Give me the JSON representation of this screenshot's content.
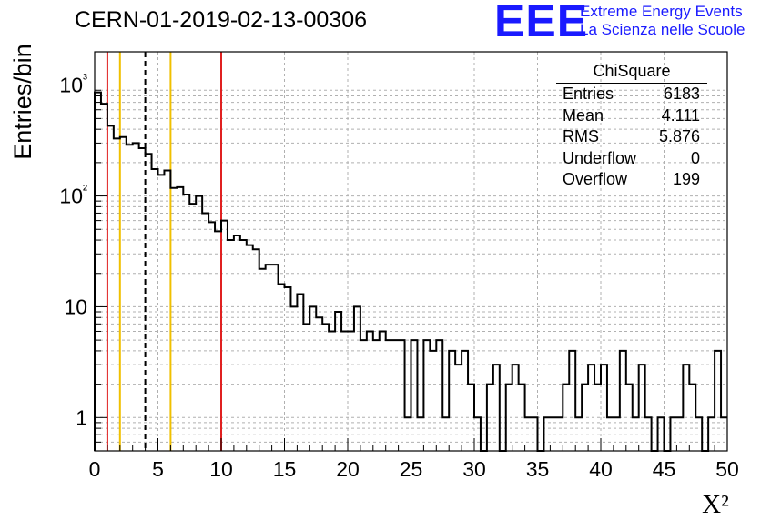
{
  "header": {
    "title": "CERN-01-2019-02-13-00306",
    "logo_letters": "EEE",
    "logo_line1": "Extreme Energy Events",
    "logo_line2": "La Scienza nelle Scuole"
  },
  "stats_box": {
    "title": "ChiSquare",
    "rows": [
      {
        "label": "Entries",
        "value": "6183"
      },
      {
        "label": "Mean",
        "value": "4.111"
      },
      {
        "label": "RMS",
        "value": "5.876"
      },
      {
        "label": "Underflow",
        "value": "0"
      },
      {
        "label": "Overflow",
        "value": "199"
      }
    ]
  },
  "chart_data": {
    "type": "histogram",
    "title": "CERN-01-2019-02-13-00306",
    "xlabel": "X²",
    "ylabel": "Entries/bin",
    "x_range": [
      0,
      50
    ],
    "y_range": [
      0.5,
      2000
    ],
    "y_scale": "log",
    "grid": true,
    "bin_width": 0.5,
    "x_ticks": [
      0,
      5,
      10,
      15,
      20,
      25,
      30,
      35,
      40,
      45,
      50
    ],
    "y_tick_labels": [
      "1",
      "10",
      "10²",
      "10³"
    ],
    "bin_values": [
      860,
      680,
      430,
      330,
      340,
      290,
      300,
      270,
      240,
      175,
      155,
      170,
      118,
      120,
      103,
      85,
      100,
      70,
      58,
      48,
      60,
      40,
      44,
      40,
      36,
      33,
      22,
      24,
      24,
      16,
      15,
      10,
      13,
      7,
      10,
      8,
      7,
      6,
      9,
      6,
      6,
      10,
      5,
      6,
      5,
      6,
      5,
      5,
      5,
      1,
      5,
      1,
      5,
      4,
      5,
      1,
      4,
      3,
      4,
      2,
      1,
      0,
      2,
      3,
      0,
      2,
      3,
      2,
      1,
      1,
      0,
      1,
      1,
      1,
      2,
      4,
      1,
      2,
      3,
      2,
      3,
      1,
      1,
      4,
      2,
      1,
      3,
      1,
      0,
      1,
      0,
      1,
      1,
      3,
      2,
      1,
      0,
      1,
      4,
      1
    ],
    "vertical_lines": [
      {
        "x": 1,
        "color": "#e02020",
        "style": "solid"
      },
      {
        "x": 10,
        "color": "#e02020",
        "style": "solid"
      },
      {
        "x": 2,
        "color": "#f0c000",
        "style": "solid"
      },
      {
        "x": 6,
        "color": "#f0c000",
        "style": "solid"
      },
      {
        "x": 4,
        "color": "#000000",
        "style": "dashed"
      }
    ]
  }
}
